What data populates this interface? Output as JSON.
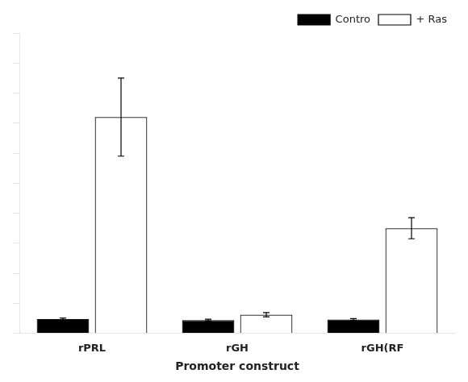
{
  "chart_data": {
    "type": "bar",
    "x_label": "Promoter construct",
    "categories": [
      "rPRL",
      "rGH",
      "rGH(RF"
    ],
    "series": [
      {
        "name": "Contro",
        "color": "#000000",
        "values": [
          0.048,
          0.044,
          0.046
        ],
        "errors": [
          0.003,
          0.003,
          0.003
        ]
      },
      {
        "name": "+ Ras",
        "color": "#ffffff",
        "values": [
          0.72,
          0.062,
          0.35
        ],
        "errors": [
          0.13,
          0.007,
          0.035
        ]
      }
    ],
    "ylim": [
      0,
      1.0
    ],
    "yticks": [
      0,
      0.1,
      0.2,
      0.3,
      0.4,
      0.5,
      0.6,
      0.7,
      0.8,
      0.9,
      1.0
    ],
    "grid": false,
    "legend": "upper right",
    "tick_labels": "x"
  }
}
